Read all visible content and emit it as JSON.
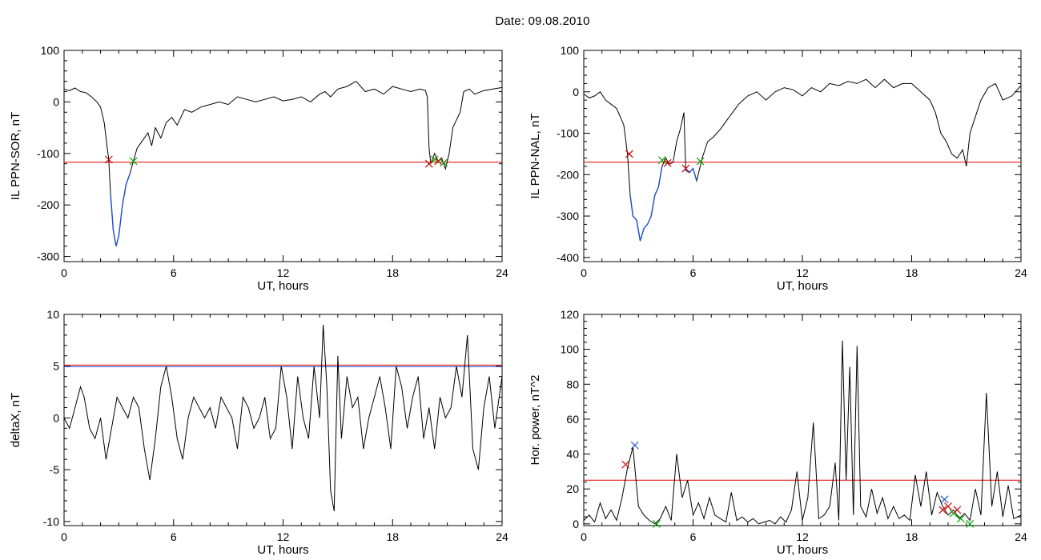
{
  "page": {
    "title": "Date:  09.08.2010"
  },
  "chart_data": [
    {
      "type": "line",
      "id": "ppn-sor",
      "xlabel": "UT, hours",
      "ylabel": "IL PPN-SOR, nT",
      "xlim": [
        0,
        24
      ],
      "ylim": [
        -310,
        100
      ],
      "xticks": [
        0,
        6,
        12,
        18,
        24
      ],
      "yticks": [
        -300,
        -200,
        -100,
        0,
        100
      ],
      "threshold": -117,
      "colors": {
        "line": "#000000",
        "highlight": "#1f4fd0",
        "threshold": "#e00000",
        "start_marker": "#cc0000",
        "end_marker": "#00aa00"
      },
      "series": [
        {
          "values_x": [
            0,
            0.3,
            0.6,
            0.9,
            1.2,
            1.5,
            1.8,
            2.0,
            2.2,
            2.35,
            2.45,
            2.55,
            2.7,
            2.85,
            3.0,
            3.2,
            3.4,
            3.6,
            3.8,
            4.0,
            4.3,
            4.6,
            4.8,
            5.0,
            5.3,
            5.6,
            5.9,
            6.2,
            6.6,
            7.0,
            7.5,
            8.0,
            8.5,
            9.0,
            9.5,
            10.0,
            10.5,
            11.0,
            11.5,
            12.0,
            12.5,
            13.0,
            13.5,
            14.0,
            14.3,
            14.6,
            15.0,
            15.5,
            16.0,
            16.5,
            17.0,
            17.5,
            18.0,
            18.5,
            19.0,
            19.5,
            19.8,
            19.9,
            20.0,
            20.1,
            20.3,
            20.5,
            20.7,
            20.9,
            21.1,
            21.3,
            21.5,
            21.7,
            21.9,
            22.2,
            22.5,
            23.0,
            23.5,
            24.0
          ],
          "values_y": [
            25,
            22,
            27,
            20,
            18,
            10,
            0,
            -10,
            -40,
            -85,
            -112,
            -180,
            -250,
            -280,
            -260,
            -200,
            -160,
            -140,
            -115,
            -90,
            -75,
            -60,
            -85,
            -50,
            -70,
            -40,
            -30,
            -45,
            -15,
            -20,
            -10,
            -5,
            0,
            -5,
            10,
            5,
            0,
            5,
            10,
            2,
            5,
            10,
            0,
            15,
            20,
            10,
            25,
            30,
            40,
            20,
            25,
            15,
            30,
            25,
            20,
            25,
            22,
            10,
            -90,
            -120,
            -100,
            -115,
            -110,
            -130,
            -100,
            -50,
            -35,
            -20,
            20,
            25,
            15,
            22,
            25,
            28
          ]
        }
      ],
      "markers": [
        {
          "x": 2.45,
          "y": -112,
          "kind": "start"
        },
        {
          "x": 3.8,
          "y": -115,
          "kind": "end"
        },
        {
          "x": 20.0,
          "y": -120,
          "kind": "start"
        },
        {
          "x": 20.5,
          "y": -115,
          "kind": "start"
        },
        {
          "x": 20.8,
          "y": -118,
          "kind": "end"
        },
        {
          "x": 20.3,
          "y": -112,
          "kind": "end"
        }
      ]
    },
    {
      "type": "line",
      "id": "ppn-nal",
      "xlabel": "UT, hours",
      "ylabel": "IL PPN-NAL, nT",
      "xlim": [
        0,
        24
      ],
      "ylim": [
        -410,
        100
      ],
      "xticks": [
        0,
        6,
        12,
        18,
        24
      ],
      "yticks": [
        -400,
        -300,
        -200,
        -100,
        0,
        100
      ],
      "threshold": -170,
      "colors": {
        "line": "#000000",
        "highlight": "#1f4fd0",
        "threshold": "#e00000",
        "start_marker": "#cc0000",
        "end_marker": "#00aa00"
      },
      "series": [
        {
          "values_x": [
            0,
            0.3,
            0.6,
            0.9,
            1.2,
            1.5,
            1.8,
            2.0,
            2.2,
            2.4,
            2.55,
            2.7,
            2.9,
            3.1,
            3.3,
            3.5,
            3.7,
            3.9,
            4.1,
            4.3,
            4.5,
            4.7,
            4.9,
            5.1,
            5.3,
            5.5,
            5.6,
            5.8,
            6.0,
            6.2,
            6.5,
            6.8,
            7.1,
            7.5,
            8.0,
            8.5,
            9.0,
            9.5,
            10.0,
            10.5,
            11.0,
            11.5,
            12.0,
            12.5,
            13.0,
            13.5,
            14.0,
            14.5,
            15.0,
            15.5,
            16.0,
            16.5,
            17.0,
            17.5,
            18.0,
            18.5,
            19.0,
            19.3,
            19.6,
            19.9,
            20.2,
            20.5,
            20.8,
            21.0,
            21.2,
            21.5,
            21.8,
            22.2,
            22.6,
            23.0,
            23.5,
            24.0
          ],
          "values_y": [
            -5,
            -15,
            -10,
            0,
            -20,
            -30,
            -40,
            -60,
            -80,
            -150,
            -250,
            -300,
            -310,
            -360,
            -330,
            -320,
            -300,
            -250,
            -230,
            -180,
            -160,
            -175,
            -170,
            -120,
            -90,
            -50,
            -190,
            -195,
            -185,
            -215,
            -160,
            -120,
            -110,
            -90,
            -60,
            -30,
            -10,
            0,
            -20,
            0,
            10,
            5,
            -10,
            10,
            0,
            20,
            15,
            25,
            20,
            30,
            10,
            30,
            10,
            20,
            20,
            0,
            -20,
            -50,
            -100,
            -120,
            -150,
            -160,
            -140,
            -180,
            -100,
            -60,
            -20,
            10,
            20,
            -20,
            -10,
            15
          ]
        }
      ],
      "markers": [
        {
          "x": 2.5,
          "y": -150,
          "kind": "start"
        },
        {
          "x": 4.3,
          "y": -165,
          "kind": "end"
        },
        {
          "x": 4.6,
          "y": -172,
          "kind": "start"
        },
        {
          "x": 5.6,
          "y": -185,
          "kind": "start"
        },
        {
          "x": 6.4,
          "y": -168,
          "kind": "end"
        }
      ]
    },
    {
      "type": "line",
      "id": "deltax",
      "xlabel": "UT, hours",
      "ylabel": "deltaX, nT",
      "xlim": [
        0,
        24
      ],
      "ylim": [
        -10.4,
        10
      ],
      "xticks": [
        0,
        6,
        12,
        18,
        24
      ],
      "yticks": [
        -10,
        -5,
        0,
        5,
        10
      ],
      "threshold": 5.1,
      "threshold2": 4.95,
      "colors": {
        "line": "#000000",
        "threshold": "#e00000",
        "threshold2": "#1f4fd0"
      },
      "series": [
        {
          "values_x": [
            0,
            0.3,
            0.6,
            0.9,
            1.1,
            1.4,
            1.7,
            2.0,
            2.3,
            2.6,
            2.9,
            3.2,
            3.5,
            3.8,
            4.1,
            4.4,
            4.7,
            5.0,
            5.3,
            5.6,
            5.9,
            6.2,
            6.5,
            6.8,
            7.1,
            7.4,
            7.7,
            8.0,
            8.3,
            8.6,
            8.9,
            9.2,
            9.5,
            9.8,
            10.1,
            10.4,
            10.7,
            11.0,
            11.3,
            11.6,
            11.9,
            12.2,
            12.5,
            12.8,
            13.1,
            13.4,
            13.7,
            14.0,
            14.2,
            14.4,
            14.6,
            14.8,
            15.0,
            15.2,
            15.5,
            15.8,
            16.1,
            16.4,
            16.7,
            17.0,
            17.3,
            17.6,
            17.9,
            18.2,
            18.5,
            18.8,
            19.1,
            19.4,
            19.7,
            20.0,
            20.3,
            20.6,
            20.9,
            21.2,
            21.5,
            21.8,
            22.1,
            22.4,
            22.7,
            23.0,
            23.3,
            23.6,
            24.0
          ],
          "values_y": [
            0,
            -1,
            1,
            3,
            2,
            -1,
            -2,
            0,
            -4,
            -1,
            2,
            1,
            0,
            2,
            1,
            -3,
            -6,
            -2,
            3,
            5,
            2,
            -2,
            -4,
            0,
            2,
            1,
            0,
            1,
            -1,
            2,
            1,
            0,
            -3,
            2,
            1,
            -1,
            0,
            2,
            -2,
            -1,
            5,
            2,
            -3,
            4,
            0,
            -2,
            5,
            0,
            9,
            3,
            -7,
            -9,
            6,
            -2,
            4,
            1,
            2,
            -3,
            0,
            2,
            4,
            1,
            -3,
            5,
            3,
            -1,
            2,
            4,
            -2,
            1,
            -3,
            2,
            0,
            1,
            5,
            2,
            8,
            -3,
            -5,
            1,
            4,
            -1,
            4
          ]
        }
      ]
    },
    {
      "type": "line",
      "id": "hor-power",
      "xlabel": "UT, hours",
      "ylabel": "Hor. power, nT^2",
      "xlim": [
        0,
        24
      ],
      "ylim": [
        -1,
        120
      ],
      "xticks": [
        0,
        6,
        12,
        18,
        24
      ],
      "yticks": [
        0,
        20,
        40,
        60,
        80,
        100,
        120
      ],
      "threshold": 25,
      "colors": {
        "line": "#000000",
        "threshold": "#e00000",
        "start_marker": "#cc0000",
        "end_marker": "#00aa00",
        "peak_marker": "#1f4fd0"
      },
      "series": [
        {
          "values_x": [
            0,
            0.3,
            0.6,
            0.9,
            1.2,
            1.5,
            1.8,
            2.1,
            2.4,
            2.7,
            3.0,
            3.3,
            3.6,
            3.9,
            4.2,
            4.5,
            4.8,
            5.1,
            5.4,
            5.7,
            6.0,
            6.3,
            6.6,
            6.9,
            7.2,
            7.5,
            7.8,
            8.1,
            8.4,
            8.7,
            9.0,
            9.3,
            9.6,
            9.9,
            10.2,
            10.5,
            10.8,
            11.1,
            11.4,
            11.7,
            12.0,
            12.3,
            12.6,
            12.9,
            13.2,
            13.5,
            13.8,
            14.0,
            14.2,
            14.4,
            14.6,
            14.8,
            15.0,
            15.2,
            15.5,
            15.8,
            16.1,
            16.4,
            16.7,
            17.0,
            17.3,
            17.6,
            17.9,
            18.2,
            18.5,
            18.8,
            19.1,
            19.4,
            19.7,
            20.0,
            20.3,
            20.6,
            20.9,
            21.2,
            21.5,
            21.8,
            22.1,
            22.4,
            22.7,
            23.0,
            23.3,
            23.6,
            24.0
          ],
          "values_y": [
            2,
            5,
            1,
            12,
            3,
            8,
            2,
            15,
            32,
            44,
            10,
            5,
            2,
            0,
            3,
            10,
            2,
            40,
            15,
            25,
            5,
            12,
            3,
            15,
            5,
            3,
            1,
            18,
            2,
            4,
            1,
            3,
            0,
            1,
            2,
            0,
            4,
            1,
            8,
            30,
            2,
            15,
            58,
            3,
            5,
            10,
            35,
            2,
            105,
            25,
            90,
            5,
            102,
            10,
            4,
            20,
            6,
            15,
            3,
            10,
            3,
            5,
            2,
            28,
            10,
            30,
            5,
            18,
            10,
            5,
            8,
            3,
            6,
            2,
            20,
            5,
            75,
            10,
            30,
            4,
            22,
            3,
            5
          ]
        }
      ],
      "markers": [
        {
          "x": 2.3,
          "y": 34,
          "kind": "start"
        },
        {
          "x": 2.8,
          "y": 45,
          "kind": "peak"
        },
        {
          "x": 4.0,
          "y": 0,
          "kind": "end"
        },
        {
          "x": 19.7,
          "y": 8,
          "kind": "start"
        },
        {
          "x": 19.8,
          "y": 14,
          "kind": "peak"
        },
        {
          "x": 20.0,
          "y": 10,
          "kind": "start"
        },
        {
          "x": 20.3,
          "y": 6,
          "kind": "end"
        },
        {
          "x": 20.5,
          "y": 8,
          "kind": "start"
        },
        {
          "x": 20.7,
          "y": 3,
          "kind": "end"
        },
        {
          "x": 21.2,
          "y": 0,
          "kind": "end"
        }
      ]
    }
  ]
}
